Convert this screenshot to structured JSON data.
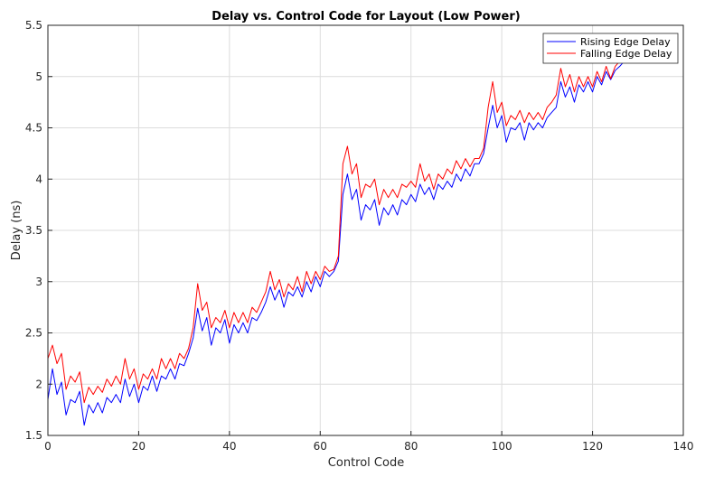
{
  "chart_data": {
    "type": "line",
    "title": "Delay vs. Control Code for Layout (Low Power)",
    "xlabel": "Control Code",
    "ylabel": "Delay (ns)",
    "xlim": [
      0,
      140
    ],
    "ylim": [
      1.5,
      5.5
    ],
    "xticks": [
      0,
      20,
      40,
      60,
      80,
      100,
      120,
      140
    ],
    "yticks": [
      1.5,
      2,
      2.5,
      3,
      3.5,
      4,
      4.5,
      5,
      5.5
    ],
    "grid": true,
    "legend_position": "top-right",
    "x": [
      0,
      1,
      2,
      3,
      4,
      5,
      6,
      7,
      8,
      9,
      10,
      11,
      12,
      13,
      14,
      15,
      16,
      17,
      18,
      19,
      20,
      21,
      22,
      23,
      24,
      25,
      26,
      27,
      28,
      29,
      30,
      31,
      32,
      33,
      34,
      35,
      36,
      37,
      38,
      39,
      40,
      41,
      42,
      43,
      44,
      45,
      46,
      47,
      48,
      49,
      50,
      51,
      52,
      53,
      54,
      55,
      56,
      57,
      58,
      59,
      60,
      61,
      62,
      63,
      64,
      65,
      66,
      67,
      68,
      69,
      70,
      71,
      72,
      73,
      74,
      75,
      76,
      77,
      78,
      79,
      80,
      81,
      82,
      83,
      84,
      85,
      86,
      87,
      88,
      89,
      90,
      91,
      92,
      93,
      94,
      95,
      96,
      97,
      98,
      99,
      100,
      101,
      102,
      103,
      104,
      105,
      106,
      107,
      108,
      109,
      110,
      111,
      112,
      113,
      114,
      115,
      116,
      117,
      118,
      119,
      120,
      121,
      122,
      123,
      124,
      125,
      126,
      127
    ],
    "series": [
      {
        "name": "Rising Edge Delay",
        "color": "#0000ff",
        "values": [
          1.85,
          2.15,
          1.9,
          2.02,
          1.7,
          1.85,
          1.82,
          1.93,
          1.6,
          1.8,
          1.72,
          1.82,
          1.72,
          1.87,
          1.82,
          1.9,
          1.82,
          2.05,
          1.88,
          2.0,
          1.82,
          1.98,
          1.94,
          2.08,
          1.93,
          2.08,
          2.05,
          2.15,
          2.05,
          2.2,
          2.18,
          2.3,
          2.45,
          2.74,
          2.52,
          2.65,
          2.38,
          2.55,
          2.5,
          2.63,
          2.4,
          2.58,
          2.5,
          2.6,
          2.5,
          2.65,
          2.62,
          2.7,
          2.8,
          2.95,
          2.82,
          2.92,
          2.75,
          2.9,
          2.86,
          2.95,
          2.85,
          3.0,
          2.9,
          3.05,
          2.95,
          3.1,
          3.05,
          3.1,
          3.2,
          3.85,
          4.05,
          3.8,
          3.9,
          3.6,
          3.75,
          3.7,
          3.8,
          3.55,
          3.72,
          3.65,
          3.75,
          3.65,
          3.8,
          3.75,
          3.85,
          3.78,
          3.95,
          3.85,
          3.92,
          3.8,
          3.95,
          3.9,
          3.98,
          3.92,
          4.05,
          3.98,
          4.1,
          4.03,
          4.15,
          4.15,
          4.25,
          4.5,
          4.72,
          4.5,
          4.62,
          4.36,
          4.5,
          4.48,
          4.55,
          4.38,
          4.55,
          4.48,
          4.55,
          4.5,
          4.6,
          4.65,
          4.7,
          4.95,
          4.8,
          4.9,
          4.75,
          4.92,
          4.85,
          4.95,
          4.85,
          5.0,
          4.92,
          5.05,
          4.97,
          5.06,
          5.1,
          5.15
        ]
      },
      {
        "name": "Falling Edge Delay",
        "color": "#ff0000",
        "values": [
          2.25,
          2.38,
          2.2,
          2.3,
          1.95,
          2.08,
          2.02,
          2.12,
          1.82,
          1.97,
          1.9,
          1.98,
          1.92,
          2.05,
          1.98,
          2.08,
          2.0,
          2.25,
          2.05,
          2.15,
          1.95,
          2.1,
          2.05,
          2.15,
          2.05,
          2.25,
          2.15,
          2.25,
          2.15,
          2.3,
          2.25,
          2.35,
          2.55,
          2.98,
          2.72,
          2.8,
          2.55,
          2.65,
          2.6,
          2.72,
          2.55,
          2.7,
          2.6,
          2.7,
          2.6,
          2.75,
          2.7,
          2.8,
          2.9,
          3.1,
          2.92,
          3.02,
          2.85,
          2.98,
          2.92,
          3.05,
          2.9,
          3.1,
          2.98,
          3.1,
          3.02,
          3.15,
          3.1,
          3.12,
          3.25,
          4.15,
          4.32,
          4.05,
          4.15,
          3.82,
          3.95,
          3.92,
          4.0,
          3.75,
          3.9,
          3.82,
          3.9,
          3.82,
          3.95,
          3.92,
          3.98,
          3.92,
          4.15,
          3.98,
          4.05,
          3.9,
          4.05,
          4.0,
          4.1,
          4.05,
          4.18,
          4.1,
          4.2,
          4.12,
          4.2,
          4.2,
          4.3,
          4.7,
          4.95,
          4.65,
          4.75,
          4.52,
          4.62,
          4.58,
          4.67,
          4.55,
          4.65,
          4.58,
          4.65,
          4.58,
          4.7,
          4.75,
          4.82,
          5.08,
          4.9,
          5.02,
          4.85,
          5.0,
          4.9,
          5.0,
          4.9,
          5.05,
          4.95,
          5.1,
          4.98,
          5.1,
          5.15,
          5.2
        ]
      }
    ]
  }
}
